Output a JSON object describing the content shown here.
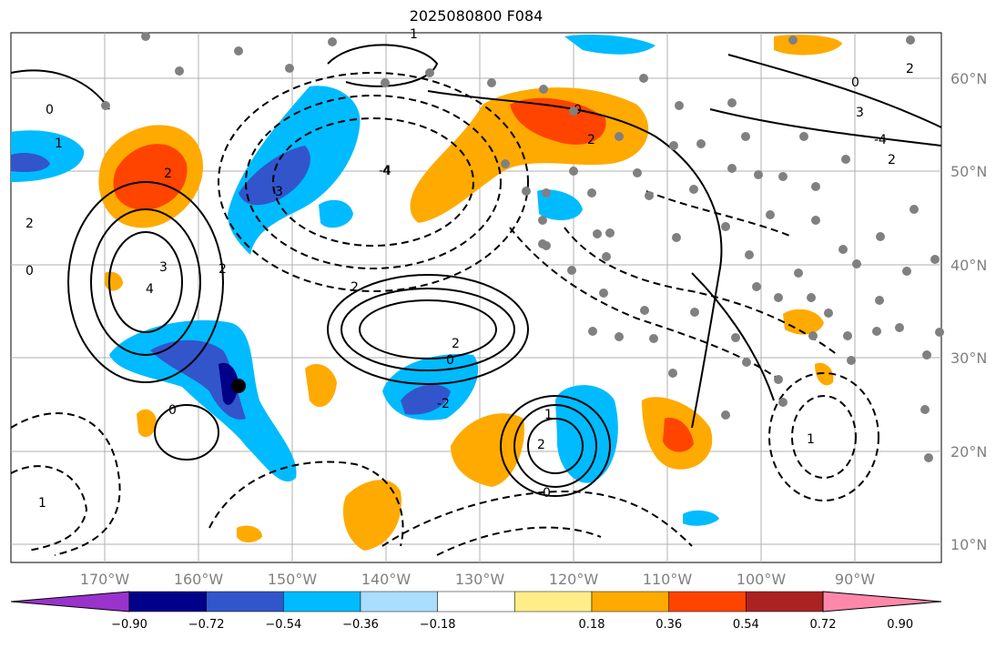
{
  "title": "2025080800 F084",
  "map": {
    "lon_range": [
      -180,
      -80
    ],
    "lat_range": [
      8,
      65
    ],
    "lat_labels": [
      "60°N",
      "50°N",
      "40°N",
      "30°N",
      "20°N",
      "10°N"
    ],
    "lon_labels": [
      "170°W",
      "160°W",
      "150°W",
      "140°W",
      "130°W",
      "120°W",
      "110°W",
      "100°W",
      "90°W"
    ],
    "contour_labels": [
      "0",
      "2",
      "1",
      "2",
      "0",
      "4",
      "2",
      "3",
      "0",
      "1",
      "2",
      "0",
      "4",
      "2",
      "3",
      "1",
      "0",
      "2",
      "1",
      "2",
      "0",
      "2",
      "-4",
      "2",
      "3",
      "0",
      "1",
      "-4",
      "-2"
    ]
  },
  "colorbar": {
    "ticks": [
      "−0.90",
      "−0.72",
      "−0.54",
      "−0.36",
      "−0.18",
      "0.18",
      "0.36",
      "0.54",
      "0.72",
      "0.90"
    ],
    "colors": [
      "#9933cc",
      "#000088",
      "#3355cc",
      "#00bbff",
      "#aaddff",
      "#ffffff",
      "#ffee88",
      "#ffaa00",
      "#ff4400",
      "#aa2222",
      "#ff88aa"
    ]
  }
}
